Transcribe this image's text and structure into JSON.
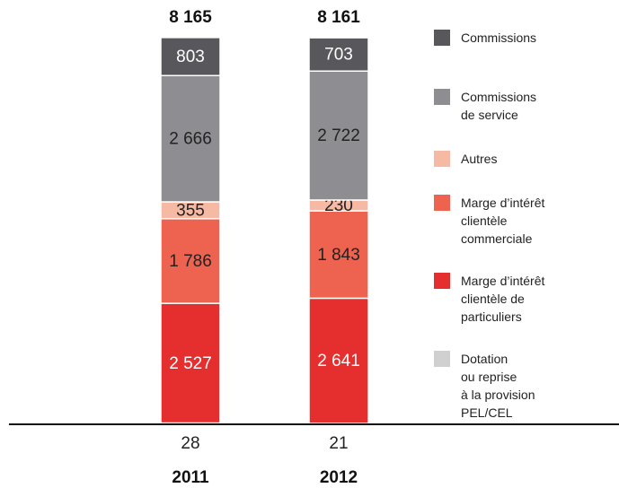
{
  "chart_data": {
    "type": "stacked_bar",
    "categories": [
      "2011",
      "2012"
    ],
    "totals": [
      8165,
      8161
    ],
    "total_labels": [
      "8 165",
      "8 161"
    ],
    "ylim": [
      0,
      8200
    ],
    "series": [
      {
        "name": "Dotation\nou reprise\nà la provision\nPEL/CEL",
        "color": "#d0d0d0",
        "values": [
          28,
          21
        ]
      },
      {
        "name": "Marge d’intérêt clientèle de particuliers",
        "color": "#e52f2f",
        "values": [
          2527,
          2641
        ],
        "value_labels": [
          "2 527",
          "2 641"
        ]
      },
      {
        "name": "Marge d’intérêt clientèle commerciale",
        "color": "#ee6350",
        "values": [
          1786,
          1843
        ],
        "value_labels": [
          "1 786",
          "1 843"
        ]
      },
      {
        "name": "Autres",
        "color": "#f6b9a4",
        "values": [
          355,
          230
        ]
      },
      {
        "name": "Commissions de service",
        "color": "#8e8d91",
        "values": [
          2666,
          2722
        ],
        "value_labels": [
          "2 666",
          "2 722"
        ]
      },
      {
        "name": "Commissions",
        "color": "#58575b",
        "values": [
          803,
          703
        ]
      }
    ]
  }
}
